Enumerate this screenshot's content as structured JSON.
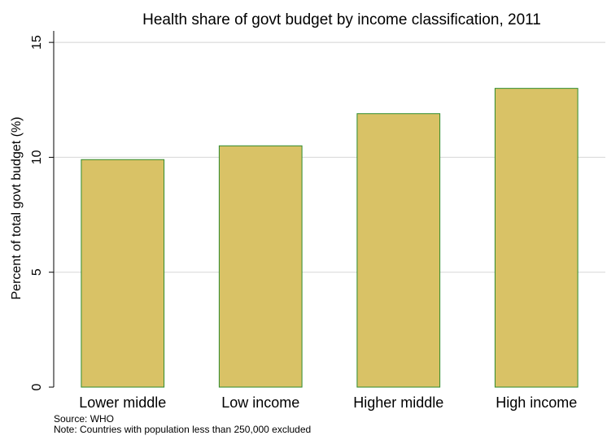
{
  "chart_data": {
    "type": "bar",
    "title": "Health share of govt budget by income classification, 2011",
    "xlabel": "",
    "ylabel": "Percent of total govt budget (%)",
    "categories": [
      "Lower middle",
      "Low income",
      "Higher middle",
      "High income"
    ],
    "values": [
      9.9,
      10.5,
      11.9,
      13.0
    ],
    "ylim": [
      0,
      15.5
    ],
    "yticks": [
      0,
      5,
      10,
      15
    ],
    "grid": true,
    "legend": "none",
    "colors": {
      "bar_fill": "#d9c266",
      "bar_stroke": "#2e8b2e",
      "grid": "#dcdcdc"
    }
  },
  "notes": {
    "source": "Source: WHO",
    "note": "Note: Countries with population less than 250,000 excluded"
  }
}
